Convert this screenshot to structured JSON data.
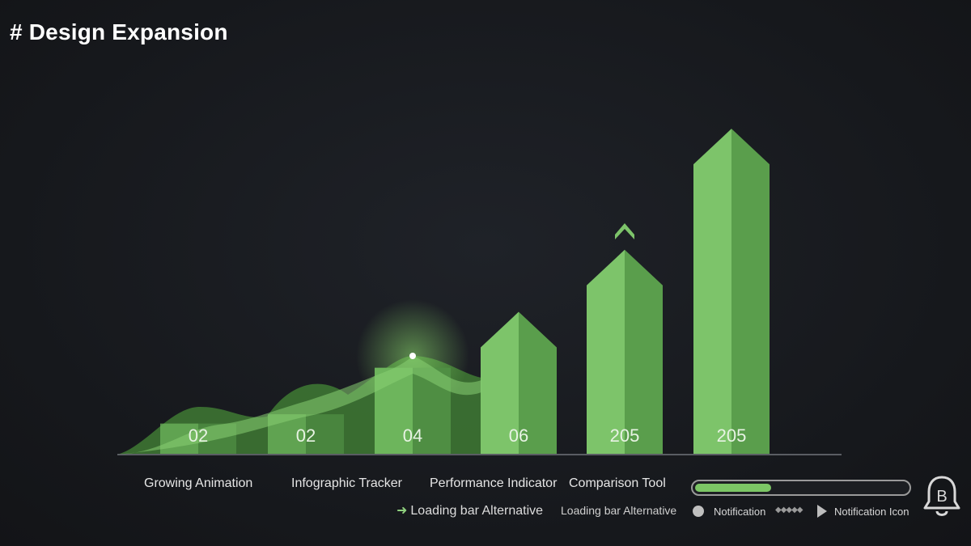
{
  "title": "# Design Expansion",
  "chart_data": {
    "type": "bar",
    "categories": [
      "Growing Animation",
      "Infographic Tracker",
      "Performance Indicator",
      "Comparison Tool"
    ],
    "bars": [
      {
        "label": "02",
        "value": 1.0
      },
      {
        "label": "02",
        "value": 1.3
      },
      {
        "label": "04",
        "value": 2.8
      },
      {
        "label": "06",
        "value": 4.6
      },
      {
        "label": "205",
        "value": 6.6
      },
      {
        "label": "205",
        "value": 10.5
      }
    ],
    "ylim": [
      0,
      11
    ],
    "colors": {
      "bar_light": "#7dc46a",
      "bar_dark": "#5a9e4c",
      "wave": "#6fbf5a",
      "baseline": "#5a5d63"
    }
  },
  "labels": {
    "category_1": "Growing Animation",
    "category_2": "Infographic Tracker",
    "category_3": "Performance Indicator",
    "category_4": "Comparison Tool",
    "loading_alt_1": "Loading bar Alternative",
    "loading_alt_2": "Loading bar Alternative",
    "notification": "Notification",
    "notification_icon": "Notification Icon",
    "bell_letter": "B"
  },
  "progress": {
    "value": 0.36
  },
  "icons": [
    "chevron-up-icon",
    "arrow-right-icon",
    "play-icon",
    "bell-icon"
  ]
}
